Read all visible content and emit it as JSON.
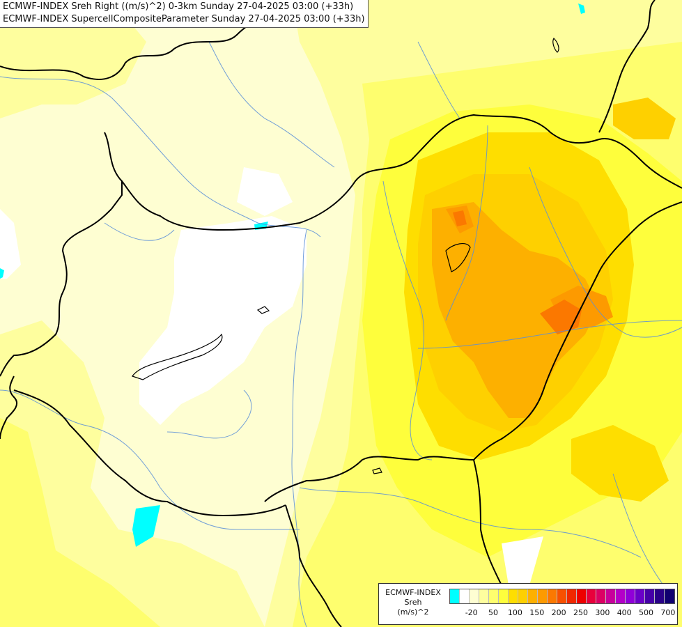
{
  "titles": {
    "line1": "ECMWF-INDEX Sreh Right ((m/s)^2) 0-3km Sunday 27-04-2025 03:00 (+33h)",
    "line2": "ECMWF-INDEX SupercellCompositeParameter Sunday 27-04-2025 03:00 (+33h)"
  },
  "legend": {
    "title_line1": "ECMWF-INDEX",
    "title_line2": "Sreh",
    "title_line3": "(m/s)^2",
    "colors": [
      "#00ffff",
      "#ffffff",
      "#fefed2",
      "#fefe9e",
      "#fefe6e",
      "#fefe3c",
      "#fede00",
      "#fed000",
      "#fdb000",
      "#fd9a00",
      "#fb7800",
      "#f75000",
      "#f02800",
      "#ee0000",
      "#e8003c",
      "#dc0064",
      "#c8009b",
      "#b400c8",
      "#9000d8",
      "#6a00c8",
      "#4600a8",
      "#2a0088",
      "#100070"
    ],
    "ticks": [
      {
        "label": "-20",
        "index": 1
      },
      {
        "label": "50",
        "index": 3
      },
      {
        "label": "100",
        "index": 5
      },
      {
        "label": "150",
        "index": 7
      },
      {
        "label": "200",
        "index": 9
      },
      {
        "label": "250",
        "index": 11
      },
      {
        "label": "300",
        "index": 13
      },
      {
        "label": "400",
        "index": 15
      },
      {
        "label": "500",
        "index": 17
      },
      {
        "label": "700",
        "index": 19
      }
    ]
  }
}
